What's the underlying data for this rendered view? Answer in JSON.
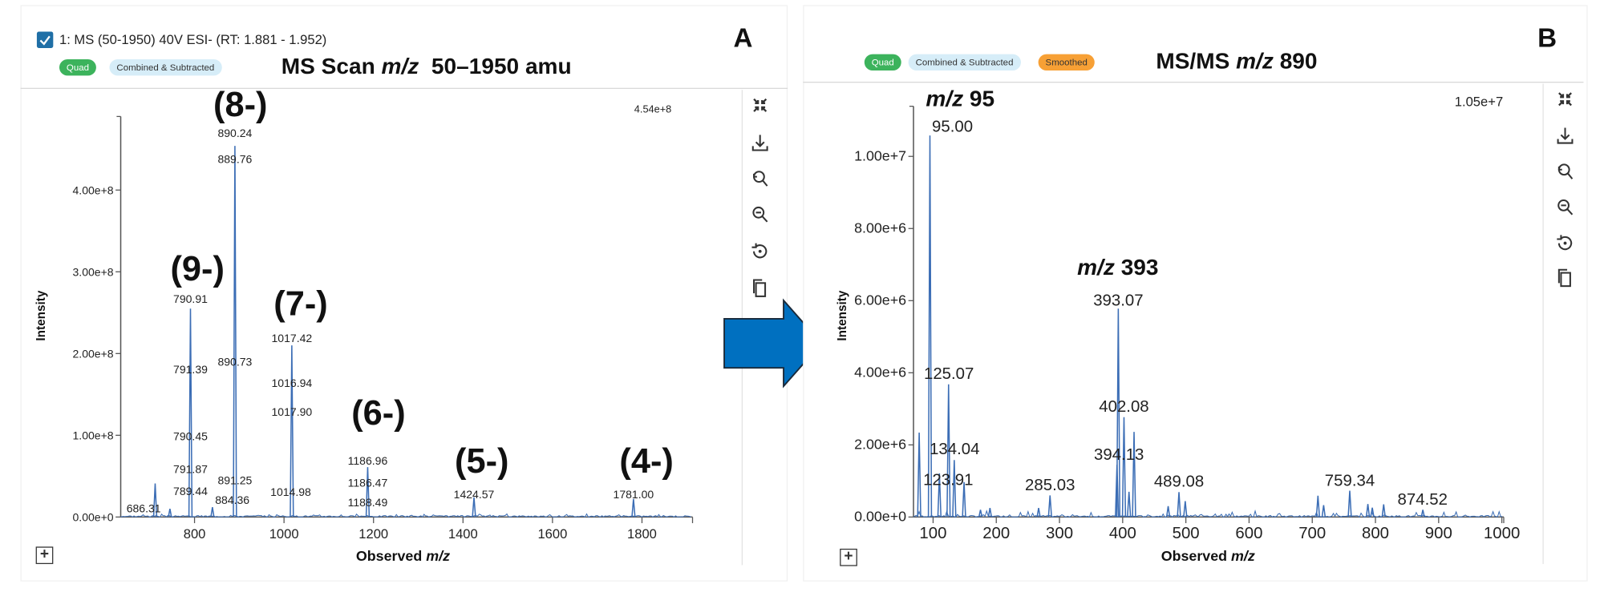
{
  "panel_a": {
    "letter": "A",
    "checkbox_label": "1: MS (50-1950) 40V ESI- (RT: 1.881 - 1.952)",
    "checked": true,
    "badges": [
      {
        "label": "Quad",
        "color": "#3cb35c"
      },
      {
        "label": "Combined & Subtracted",
        "color": "#d6edf8"
      }
    ],
    "title_prefix": "MS Scan ",
    "title_italic": "m/z",
    "title_suffix": "  50–1950 amu",
    "max_intensity_label": "4.54e+8",
    "charge_states": [
      "(8-)",
      "(9-)",
      "(7-)",
      "(6-)",
      "(5-)",
      "(4-)"
    ],
    "toolbar": [
      "collapse-icon",
      "download-icon",
      "zoom-reset-icon",
      "zoom-out-icon",
      "reset-view-icon",
      "copy-icon"
    ],
    "expand_label": "+"
  },
  "panel_b": {
    "letter": "B",
    "badges": [
      {
        "label": "Quad",
        "color": "#3cb35c"
      },
      {
        "label": "Combined & Subtracted",
        "color": "#d6edf8"
      },
      {
        "label": "Smoothed",
        "color": "#f7a035"
      }
    ],
    "title_prefix": "MS/MS ",
    "title_italic": "m/z",
    "title_suffix": " 890",
    "max_intensity_label": "1.05e+7",
    "annotations": [
      {
        "italic": "m/z",
        "text": " 95"
      },
      {
        "italic": "m/z",
        "text": " 393"
      }
    ],
    "toolbar": [
      "collapse-icon",
      "download-icon",
      "zoom-reset-icon",
      "zoom-out-icon",
      "reset-view-icon",
      "copy-icon"
    ],
    "expand_label": "+"
  },
  "arrow_color": "#0070c0",
  "chart_data": [
    {
      "type": "line",
      "xlabel_prefix": "Observed ",
      "xlabel_italic": "m/z",
      "ylabel": "Intensity",
      "xlim": [
        635,
        1913
      ],
      "ylim": [
        0,
        490000000.0
      ],
      "xticks": [
        800,
        1000,
        1200,
        1400,
        1600,
        1800
      ],
      "xtick_labels": [
        "800",
        "1000",
        "1200",
        "1400",
        "1600",
        "1800"
      ],
      "yticks": [
        0,
        100000000.0,
        200000000.0,
        300000000.0,
        400000000.0
      ],
      "ytick_labels": [
        "0.00e+0",
        "1.00e+8",
        "2.00e+8",
        "3.00e+8",
        "4.00e+8"
      ],
      "color": "#3b6db5",
      "peaks": [
        {
          "mz": 712,
          "intensity": 41000000.0
        },
        {
          "mz": 745,
          "intensity": 10000000.0
        },
        {
          "mz": 790.91,
          "intensity": 255000000.0
        },
        {
          "mz": 840,
          "intensity": 12000000.0
        },
        {
          "mz": 890.24,
          "intensity": 454000000.0
        },
        {
          "mz": 1017.42,
          "intensity": 210000000.0
        },
        {
          "mz": 1186.96,
          "intensity": 61000000.0
        },
        {
          "mz": 1424.57,
          "intensity": 24000000.0
        },
        {
          "mz": 1781.0,
          "intensity": 22000000.0
        }
      ],
      "peak_labels": [
        {
          "text": "686.31",
          "mz": 686.31,
          "intensity": 11000000.0
        },
        {
          "text": "890.24",
          "mz": 890.24,
          "intensity": 470000000.0
        },
        {
          "text": "889.76",
          "mz": 890.24,
          "intensity": 438000000.0
        },
        {
          "text": "790.91",
          "mz": 790.91,
          "intensity": 267000000.0
        },
        {
          "text": "791.39",
          "mz": 790.91,
          "intensity": 181000000.0
        },
        {
          "text": "790.45",
          "mz": 790.91,
          "intensity": 99000000.0
        },
        {
          "text": "791.87",
          "mz": 790.91,
          "intensity": 59000000.0
        },
        {
          "text": "789.44",
          "mz": 790.91,
          "intensity": 32000000.0
        },
        {
          "text": "890.73",
          "mz": 890.24,
          "intensity": 190000000.0
        },
        {
          "text": "891.25",
          "mz": 890.24,
          "intensity": 45000000.0
        },
        {
          "text": "884.36",
          "mz": 884.36,
          "intensity": 21000000.0
        },
        {
          "text": "1017.42",
          "mz": 1017.42,
          "intensity": 219000000.0
        },
        {
          "text": "1016.94",
          "mz": 1017.42,
          "intensity": 164000000.0
        },
        {
          "text": "1017.90",
          "mz": 1017.42,
          "intensity": 129000000.0
        },
        {
          "text": "1014.98",
          "mz": 1014.98,
          "intensity": 31000000.0
        },
        {
          "text": "1186.96",
          "mz": 1186.96,
          "intensity": 69000000.0
        },
        {
          "text": "1186.47",
          "mz": 1186.96,
          "intensity": 42000000.0
        },
        {
          "text": "1188.49",
          "mz": 1186.96,
          "intensity": 18000000.0
        },
        {
          "text": "1424.57",
          "mz": 1424.57,
          "intensity": 28000000.0
        },
        {
          "text": "1781.00",
          "mz": 1781.0,
          "intensity": 28000000.0
        }
      ]
    },
    {
      "type": "line",
      "xlabel_prefix": "Observed ",
      "xlabel_italic": "m/z",
      "ylabel": "Intensity",
      "xlim": [
        69,
        1003
      ],
      "ylim": [
        0,
        11390000.0
      ],
      "xticks": [
        100,
        200,
        300,
        400,
        500,
        600,
        700,
        800,
        900,
        1000
      ],
      "xtick_labels": [
        "100",
        "200",
        "300",
        "400",
        "500",
        "600",
        "700",
        "800",
        "900",
        "1000"
      ],
      "yticks": [
        0,
        2000000.0,
        4000000.0,
        6000000.0,
        8000000.0,
        10000000.0
      ],
      "ytick_labels": [
        "0.00e+0",
        "2.00e+6",
        "4.00e+6",
        "6.00e+6",
        "8.00e+6",
        "1.00e+7"
      ],
      "color": "#3b6db5",
      "peaks": [
        {
          "mz": 78,
          "intensity": 2340000.0
        },
        {
          "mz": 95.0,
          "intensity": 10580000.0
        },
        {
          "mz": 110,
          "intensity": 1210000.0
        },
        {
          "mz": 124.5,
          "intensity": 3680000.0
        },
        {
          "mz": 133.5,
          "intensity": 1580000.0
        },
        {
          "mz": 149,
          "intensity": 970000.0
        },
        {
          "mz": 175,
          "intensity": 200000.0
        },
        {
          "mz": 190,
          "intensity": 250000.0
        },
        {
          "mz": 267,
          "intensity": 250000.0
        },
        {
          "mz": 285.03,
          "intensity": 600000.0
        },
        {
          "mz": 391,
          "intensity": 1450000.0
        },
        {
          "mz": 393.07,
          "intensity": 5780000.0
        },
        {
          "mz": 402.08,
          "intensity": 2770000.0
        },
        {
          "mz": 410,
          "intensity": 700000.0
        },
        {
          "mz": 418,
          "intensity": 2360000.0
        },
        {
          "mz": 472,
          "intensity": 300000.0
        },
        {
          "mz": 489.08,
          "intensity": 690000.0
        },
        {
          "mz": 499,
          "intensity": 440000.0
        },
        {
          "mz": 709,
          "intensity": 590000.0
        },
        {
          "mz": 718,
          "intensity": 330000.0
        },
        {
          "mz": 759.34,
          "intensity": 730000.0
        },
        {
          "mz": 788,
          "intensity": 360000.0
        },
        {
          "mz": 795,
          "intensity": 260000.0
        },
        {
          "mz": 813,
          "intensity": 350000.0
        },
        {
          "mz": 875,
          "intensity": 200000.0
        }
      ],
      "peak_labels": [
        {
          "text": "95.00",
          "mz": 95.0,
          "intensity": 10800000.0,
          "anchor": "start"
        },
        {
          "text": "393.07",
          "mz": 393.07,
          "intensity": 5980000.0
        },
        {
          "text": "125.07",
          "mz": 125.07,
          "intensity": 3940000.0
        },
        {
          "text": "402.08",
          "mz": 402.08,
          "intensity": 3030000.0
        },
        {
          "text": "134.04",
          "mz": 134.04,
          "intensity": 1850000.0
        },
        {
          "text": "394.13",
          "mz": 394.13,
          "intensity": 1700000.0
        },
        {
          "text": "123.91",
          "mz": 123.91,
          "intensity": 1000000.0
        },
        {
          "text": "285.03",
          "mz": 285.03,
          "intensity": 860000.0
        },
        {
          "text": "489.08",
          "mz": 489.08,
          "intensity": 950000.0
        },
        {
          "text": "759.34",
          "mz": 759.34,
          "intensity": 980000.0
        },
        {
          "text": "874.52",
          "mz": 874.52,
          "intensity": 450000.0
        }
      ]
    }
  ]
}
